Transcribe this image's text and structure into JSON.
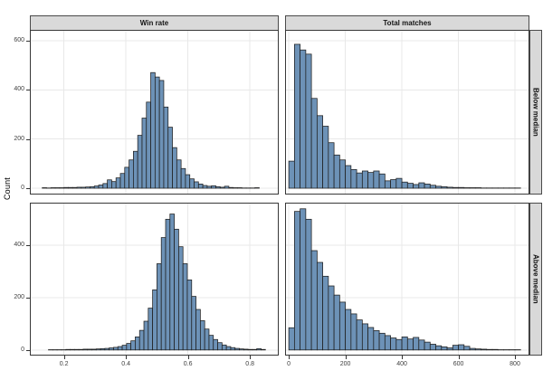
{
  "figure": {
    "y_axis_title": "Count"
  },
  "strips": {
    "cols": [
      "Win rate",
      "Total matches"
    ],
    "rows": [
      "Below median",
      "Above median"
    ]
  },
  "style": {
    "bar_fill": "#6d92b7",
    "bar_stroke": "#1f1f1f",
    "grid_color": "#e8e8e8",
    "strip_bg": "#d9d9d9",
    "panel_border": "#383838",
    "tick_color": "#333333",
    "tick_label_color": "#404040"
  },
  "chart_data": {
    "type": "bar",
    "subtype": "faceted_histogram_grid",
    "title": "",
    "xlabel": "",
    "ylabel": "Count",
    "grid": "major-only",
    "legend": "none",
    "facet_columns": [
      "Win rate",
      "Total matches"
    ],
    "facet_rows": [
      "Below median",
      "Above median"
    ],
    "x_axes": {
      "win_rate": {
        "domain": [
          0.093,
          0.89
        ],
        "tick_values": [
          0.2,
          0.4,
          0.6,
          0.8
        ],
        "tick_labels": [
          "0.2",
          "0.4",
          "0.6",
          "0.8"
        ]
      },
      "total_matches": {
        "domain": [
          -10,
          848
        ],
        "tick_values": [
          0,
          200,
          400,
          600,
          800
        ],
        "tick_labels": [
          "0",
          "200",
          "400",
          "600",
          "800"
        ]
      }
    },
    "y_axes": {
      "below_median": {
        "domain": [
          -22,
          640
        ],
        "tick_values": [
          0,
          200,
          400,
          600
        ],
        "tick_labels": [
          "0",
          "200",
          "400",
          "600"
        ]
      },
      "above_median": {
        "domain": [
          -18,
          560
        ],
        "tick_values": [
          0,
          200,
          400
        ],
        "tick_labels": [
          "0",
          "200",
          "400"
        ]
      }
    },
    "panels": [
      {
        "id": "tl",
        "column": "Win rate",
        "row": "Below median",
        "bin_start": 0.13,
        "bin_width": 0.014,
        "counts": [
          2,
          1,
          2,
          2,
          2,
          3,
          3,
          3,
          4,
          4,
          5,
          6,
          9,
          13,
          19,
          34,
          27,
          42,
          60,
          85,
          115,
          150,
          215,
          285,
          350,
          470,
          452,
          438,
          330,
          248,
          165,
          115,
          80,
          55,
          38,
          26,
          17,
          11,
          8,
          10,
          6,
          4,
          8,
          3,
          2,
          2,
          1,
          1,
          1,
          2
        ]
      },
      {
        "id": "tr",
        "column": "Total matches",
        "row": "Below median",
        "bin_start": 0,
        "bin_width": 20,
        "counts": [
          110,
          585,
          562,
          545,
          365,
          295,
          252,
          185,
          135,
          115,
          92,
          76,
          62,
          70,
          64,
          70,
          58,
          30,
          35,
          40,
          25,
          20,
          15,
          22,
          17,
          12,
          8,
          6,
          4,
          3,
          3,
          2,
          2,
          2,
          1,
          1,
          1,
          1,
          1,
          1,
          1
        ]
      },
      {
        "id": "bl",
        "column": "Win rate",
        "row": "Above median",
        "bin_start": 0.15,
        "bin_width": 0.014,
        "counts": [
          1,
          1,
          1,
          1,
          2,
          2,
          2,
          2,
          3,
          3,
          3,
          4,
          5,
          6,
          8,
          10,
          13,
          18,
          25,
          35,
          50,
          75,
          110,
          160,
          230,
          330,
          430,
          500,
          520,
          462,
          395,
          330,
          268,
          205,
          155,
          112,
          80,
          56,
          40,
          28,
          19,
          13,
          9,
          6,
          4,
          3,
          2,
          2,
          5,
          2
        ]
      },
      {
        "id": "br",
        "column": "Total matches",
        "row": "Above median",
        "bin_start": 0,
        "bin_width": 20,
        "counts": [
          85,
          530,
          540,
          500,
          380,
          335,
          282,
          245,
          210,
          183,
          155,
          138,
          115,
          100,
          86,
          74,
          64,
          55,
          46,
          40,
          50,
          42,
          48,
          38,
          30,
          22,
          16,
          12,
          8,
          18,
          20,
          14,
          6,
          4,
          3,
          2,
          2,
          1,
          1,
          1,
          1
        ]
      }
    ]
  }
}
